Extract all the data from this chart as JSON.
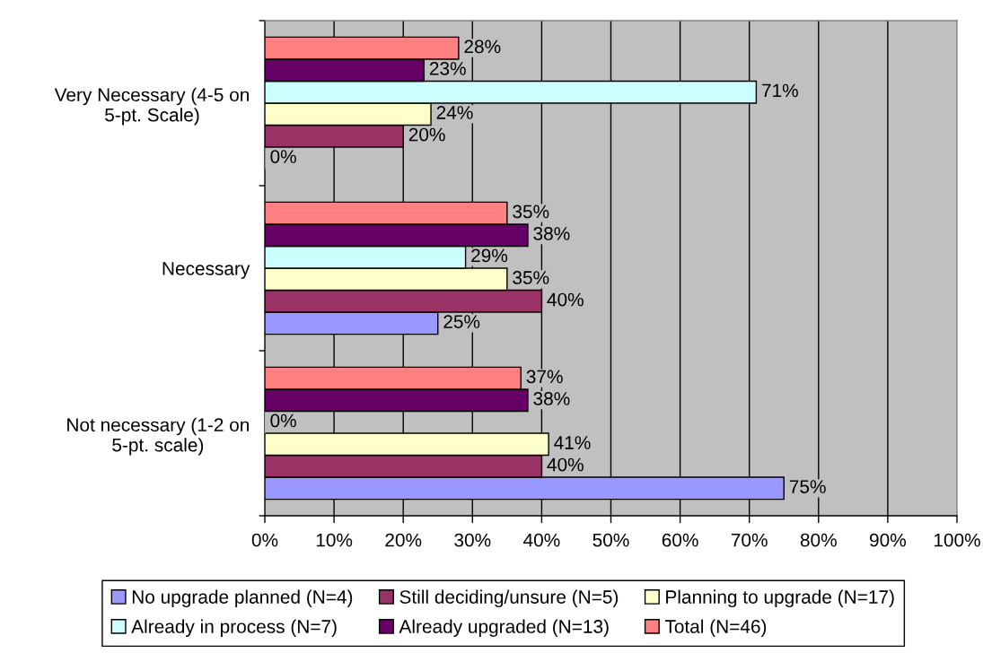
{
  "chart_data": {
    "type": "bar",
    "orientation": "horizontal",
    "categories": [
      "Very Necessary (4-5 on 5-pt. Scale)",
      "Necessary",
      "Not necessary (1-2 on 5-pt. scale)"
    ],
    "series": [
      {
        "name": "No upgrade planned (N=4)",
        "color": "#9999ff",
        "values": [
          0,
          25,
          75
        ],
        "value_labels": [
          "0%",
          "25%",
          "75%"
        ]
      },
      {
        "name": "Still deciding/unsure (N=5)",
        "color": "#993366",
        "values": [
          20,
          40,
          40
        ],
        "value_labels": [
          "20%",
          "40%",
          "40%"
        ]
      },
      {
        "name": "Planning to upgrade (N=17)",
        "color": "#ffffcc",
        "values": [
          24,
          35,
          41
        ],
        "value_labels": [
          "24%",
          "35%",
          "41%"
        ]
      },
      {
        "name": "Already in process (N=7)",
        "color": "#ccffff",
        "values": [
          71,
          29,
          0
        ],
        "value_labels": [
          "71%",
          "29%",
          "0%"
        ]
      },
      {
        "name": "Already upgraded (N=13)",
        "color": "#660066",
        "values": [
          23,
          38,
          38
        ],
        "value_labels": [
          "23%",
          "38%",
          "38%"
        ]
      },
      {
        "name": "Total (N=46)",
        "color": "#ff8080",
        "values": [
          28,
          35,
          37
        ],
        "value_labels": [
          "28%",
          "35%",
          "37%"
        ]
      }
    ],
    "xlim": [
      0,
      100
    ],
    "xticks": [
      {
        "value": 0,
        "label": "0%"
      },
      {
        "value": 10,
        "label": "10%"
      },
      {
        "value": 20,
        "label": "20%"
      },
      {
        "value": 30,
        "label": "30%"
      },
      {
        "value": 40,
        "label": "40%"
      },
      {
        "value": 50,
        "label": "50%"
      },
      {
        "value": 60,
        "label": "60%"
      },
      {
        "value": 70,
        "label": "70%"
      },
      {
        "value": 80,
        "label": "80%"
      },
      {
        "value": 90,
        "label": "90%"
      },
      {
        "value": 100,
        "label": "100%"
      }
    ],
    "grid": "x",
    "legend": "bottom"
  }
}
